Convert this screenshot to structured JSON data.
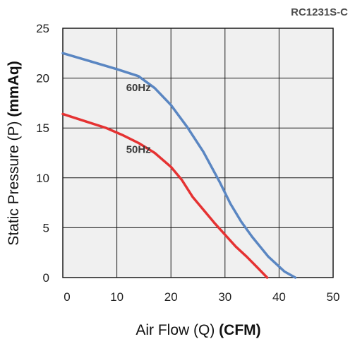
{
  "model_label": "RC1231S-C",
  "chart_data": {
    "type": "line",
    "xlabel": "Air Flow (Q)",
    "xlabel_unit": "(CFM)",
    "ylabel": "Static Pressure (P)",
    "ylabel_unit": "(mmAq)",
    "xlim": [
      0,
      50
    ],
    "ylim": [
      0,
      25
    ],
    "xticks": [
      0,
      10,
      20,
      30,
      40,
      50
    ],
    "yticks": [
      0,
      5,
      10,
      15,
      20,
      25
    ],
    "grid": true,
    "series": [
      {
        "name": "60Hz",
        "color": "#5a86c2",
        "x": [
          0,
          5,
          10,
          14,
          17,
          20,
          23,
          26,
          29,
          31,
          33,
          35,
          38,
          41,
          43
        ],
        "y": [
          22.5,
          21.7,
          20.9,
          20.2,
          19.0,
          17.3,
          15.1,
          12.6,
          9.6,
          7.4,
          5.6,
          4.1,
          2.1,
          0.6,
          0
        ]
      },
      {
        "name": "50Hz",
        "color": "#e53232",
        "x": [
          0,
          4,
          8,
          11,
          14,
          17,
          20,
          22,
          24,
          26,
          28,
          30,
          32,
          34,
          36,
          37.8
        ],
        "y": [
          16.4,
          15.7,
          15.0,
          14.3,
          13.5,
          12.5,
          11.1,
          9.8,
          8.1,
          6.8,
          5.5,
          4.3,
          3.1,
          2.1,
          1.0,
          0
        ]
      }
    ],
    "series_labels": [
      {
        "text": "60Hz",
        "x": 14,
        "y": 18.7
      },
      {
        "text": "50Hz",
        "x": 14,
        "y": 12.5
      }
    ]
  }
}
